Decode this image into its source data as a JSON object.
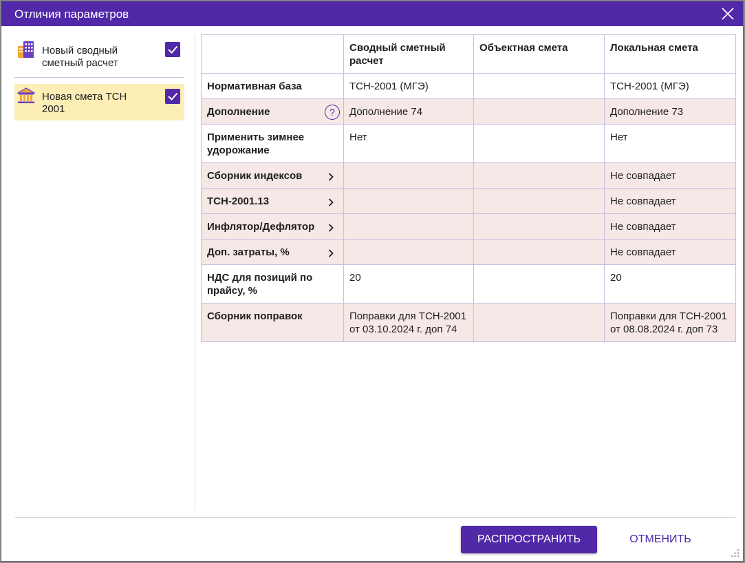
{
  "dialog": {
    "title": "Отличия параметров",
    "close_icon": "close-icon"
  },
  "documents": [
    {
      "label": "Новый сводный сметный расчет",
      "icon": "building-icon",
      "checked": true,
      "selected": false
    },
    {
      "label": "Новая смета ТСН 2001",
      "icon": "institution-icon",
      "checked": true,
      "selected": true
    }
  ],
  "table": {
    "headers": [
      "",
      "Сводный сметный расчет",
      "Объектная смета",
      "Локальная смета"
    ],
    "rows": [
      {
        "param": "Нормативная база",
        "svod": "ТСН-2001 (МГЭ)",
        "obj": "",
        "loc": "ТСН-2001 (МГЭ)",
        "marker": "none",
        "shade": "white"
      },
      {
        "param": "Дополнение",
        "svod": "Дополнение 74",
        "obj": "",
        "loc": "Дополнение 73",
        "marker": "help",
        "shade": "pink"
      },
      {
        "param": "Применить зимнее удорожание",
        "svod": "Нет",
        "obj": "",
        "loc": "Нет",
        "marker": "none",
        "shade": "white"
      },
      {
        "param": "Сборник индексов",
        "svod": "",
        "obj": "",
        "loc": "Не совпадает",
        "marker": "expand",
        "shade": "pink"
      },
      {
        "param": "ТСН-2001.13",
        "svod": "",
        "obj": "",
        "loc": "Не совпадает",
        "marker": "expand",
        "shade": "pink"
      },
      {
        "param": "Инфлятор/Дефлятор",
        "svod": "",
        "obj": "",
        "loc": "Не совпадает",
        "marker": "expand",
        "shade": "pink"
      },
      {
        "param": "Доп. затраты, %",
        "svod": "",
        "obj": "",
        "loc": "Не совпадает",
        "marker": "expand",
        "shade": "pink"
      },
      {
        "param": "НДС для позиций по прайсу, %",
        "svod": "20",
        "obj": "",
        "loc": "20",
        "marker": "none",
        "shade": "white"
      },
      {
        "param": "Сборник поправок",
        "svod": "Поправки для ТСН-2001 от 03.10.2024 г. доп 74",
        "obj": "",
        "loc": "Поправки для ТСН-2001 от 08.08.2024 г. доп 73",
        "marker": "none",
        "shade": "pink"
      }
    ]
  },
  "help_glyph": "?",
  "footer": {
    "apply_label": "РАСПРОСТРАНИТЬ",
    "cancel_label": "ОТМЕНИТЬ"
  },
  "colors": {
    "accent": "#5128a8",
    "diff_row": "#f5e8e6",
    "selected_item": "#fdeeb6"
  }
}
